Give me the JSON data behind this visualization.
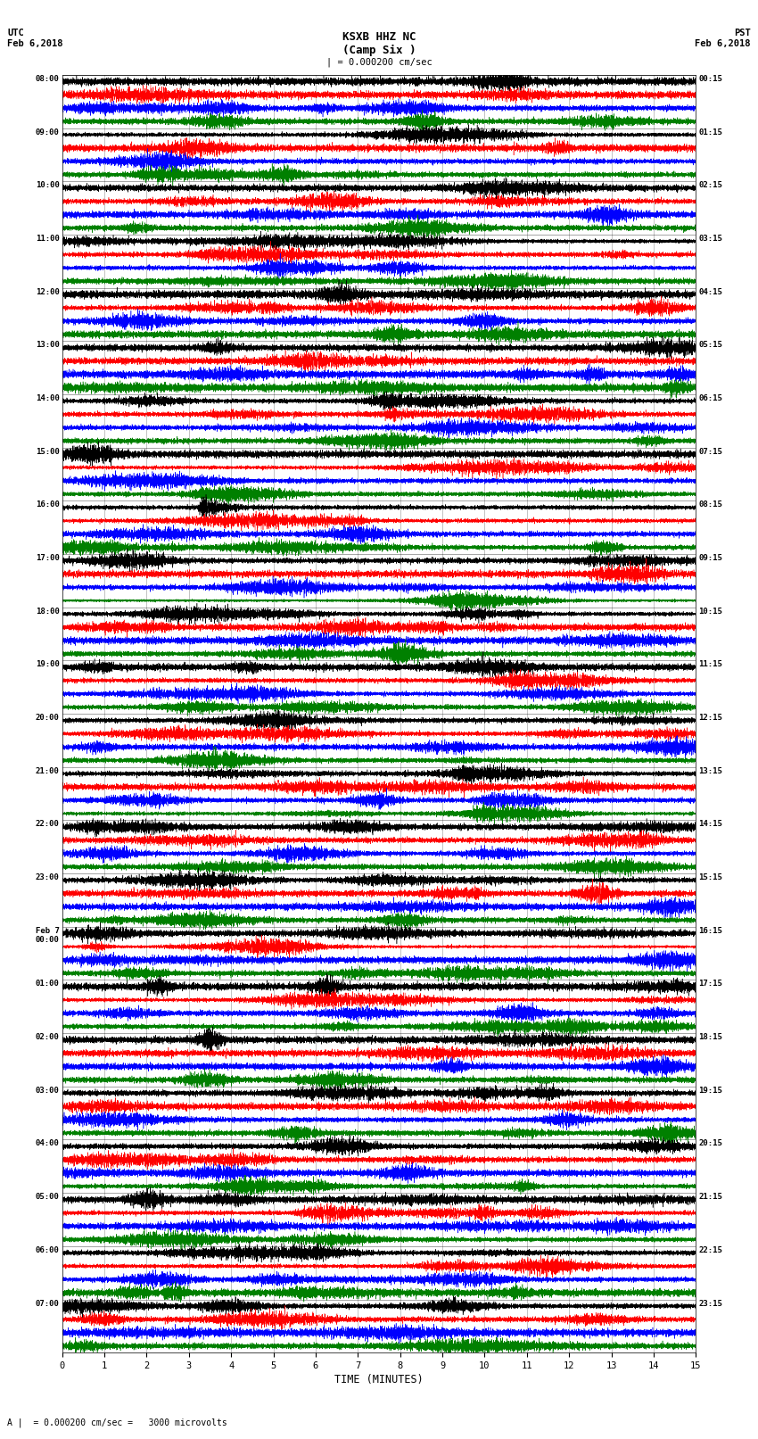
{
  "title_line1": "KSXB HHZ NC",
  "title_line2": "(Camp Six )",
  "scale_text": "| = 0.000200 cm/sec",
  "utc_label": "UTC\nFeb 6,2018",
  "pst_label": "PST\nFeb 6,2018",
  "xlabel": "TIME (MINUTES)",
  "bottom_note": "A |  = 0.000200 cm/sec =   3000 microvolts",
  "left_times": [
    "08:00",
    "09:00",
    "10:00",
    "11:00",
    "12:00",
    "13:00",
    "14:00",
    "15:00",
    "16:00",
    "17:00",
    "18:00",
    "19:00",
    "20:00",
    "21:00",
    "22:00",
    "23:00",
    "Feb 7\n00:00",
    "01:00",
    "02:00",
    "03:00",
    "04:00",
    "05:00",
    "06:00",
    "07:00"
  ],
  "right_times": [
    "00:15",
    "01:15",
    "02:15",
    "03:15",
    "04:15",
    "05:15",
    "06:15",
    "07:15",
    "08:15",
    "09:15",
    "10:15",
    "11:15",
    "12:15",
    "13:15",
    "14:15",
    "15:15",
    "16:15",
    "17:15",
    "18:15",
    "19:15",
    "20:15",
    "21:15",
    "22:15",
    "23:15"
  ],
  "colors": [
    "black",
    "red",
    "blue",
    "green"
  ],
  "n_rows": 24,
  "n_traces_per_row": 4,
  "minutes": 15,
  "bg_color": "white",
  "grid_color": "#888888",
  "special_row": 8,
  "special_trace": 0,
  "vline_minutes": [
    1,
    2,
    3,
    4,
    5,
    6,
    7,
    8,
    9,
    10,
    11,
    12,
    13,
    14
  ]
}
